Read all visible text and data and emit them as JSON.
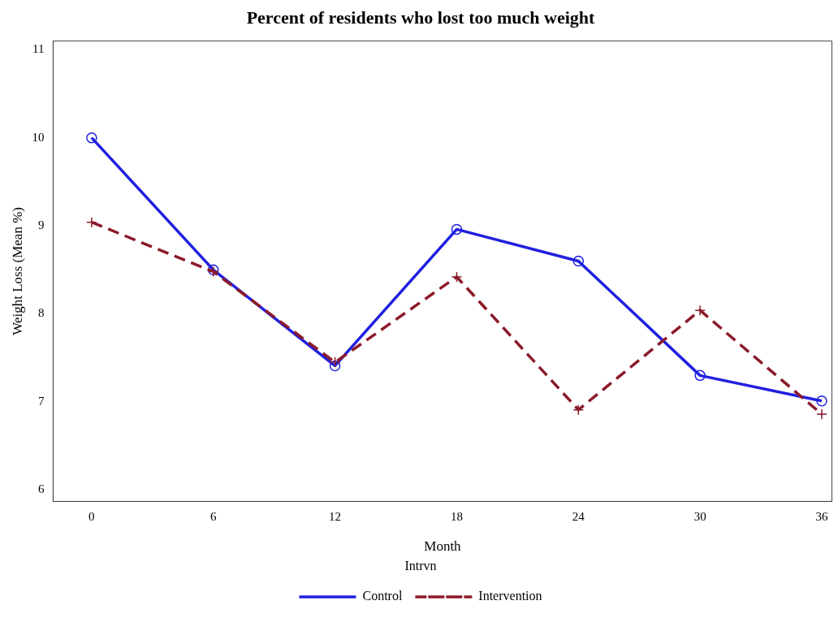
{
  "chart_data": {
    "type": "line",
    "title": "Percent of residents who lost too much weight",
    "xlabel": "Month",
    "ylabel": "Weight Loss (Mean %)",
    "legend_title": "Intrvn",
    "x": [
      0,
      6,
      12,
      18,
      24,
      30,
      36
    ],
    "series": [
      {
        "name": "Control",
        "color": "#2020e0",
        "marker": "circle",
        "line_style": "solid",
        "values": [
          10.0,
          8.5,
          7.41,
          8.96,
          8.6,
          7.3,
          7.01
        ]
      },
      {
        "name": "Intervention",
        "color": "#8b1a2a",
        "marker": "cross",
        "line_style": "dashed",
        "values": [
          9.04,
          8.48,
          7.45,
          8.42,
          6.91,
          8.04,
          6.86
        ]
      }
    ],
    "xlim": [
      -1.9,
      36.5
    ],
    "xticks": [
      0,
      6,
      12,
      18,
      24,
      30,
      36
    ],
    "ylim": [
      5.87,
      11.1
    ],
    "yticks": [
      6,
      7,
      8,
      9,
      10,
      11
    ],
    "grid": false,
    "legend": "bottom"
  }
}
